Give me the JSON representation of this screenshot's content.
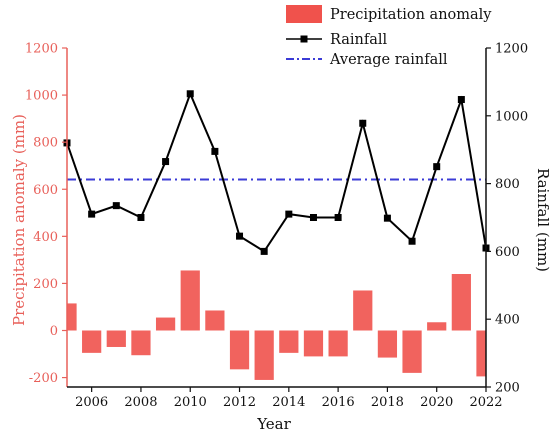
{
  "chart_data": {
    "type": "bar+line",
    "title": "",
    "xlabel": "Year",
    "ylabel_left": "Precipitation anomaly (mm)",
    "ylabel_right": "Rainfall (mm)",
    "x": [
      2005,
      2006,
      2007,
      2008,
      2009,
      2010,
      2011,
      2012,
      2013,
      2014,
      2015,
      2016,
      2017,
      2018,
      2019,
      2020,
      2021,
      2022
    ],
    "x_ticks": [
      "2006",
      "2008",
      "2010",
      "2012",
      "2014",
      "2016",
      "2018",
      "2020",
      "2022"
    ],
    "ylim_left": [
      -240,
      1200
    ],
    "yticks_left": [
      -200,
      0,
      200,
      400,
      600,
      800,
      1000,
      1200
    ],
    "ylim_right": [
      200,
      1200
    ],
    "yticks_right": [
      200,
      400,
      600,
      800,
      1000,
      1200
    ],
    "series": [
      {
        "name": "Precipitation anomaly",
        "type": "bar",
        "axis": "left",
        "color": "#f0524c",
        "values": [
          115,
          -95,
          -70,
          -105,
          55,
          255,
          85,
          -165,
          -210,
          -95,
          -110,
          -110,
          170,
          -115,
          -180,
          35,
          240,
          -195
        ]
      },
      {
        "name": "Rainfall",
        "type": "line",
        "axis": "right",
        "color": "#000000",
        "values": [
          920,
          710,
          735,
          700,
          865,
          1065,
          895,
          645,
          600,
          710,
          700,
          700,
          978,
          698,
          630,
          850,
          1048,
          610
        ]
      },
      {
        "name": "Average rainfall",
        "type": "line",
        "style": "dash-dot",
        "axis": "right",
        "color": "#3b3bd6",
        "value": 812
      }
    ],
    "legend_position": "top-right",
    "grid": false
  }
}
